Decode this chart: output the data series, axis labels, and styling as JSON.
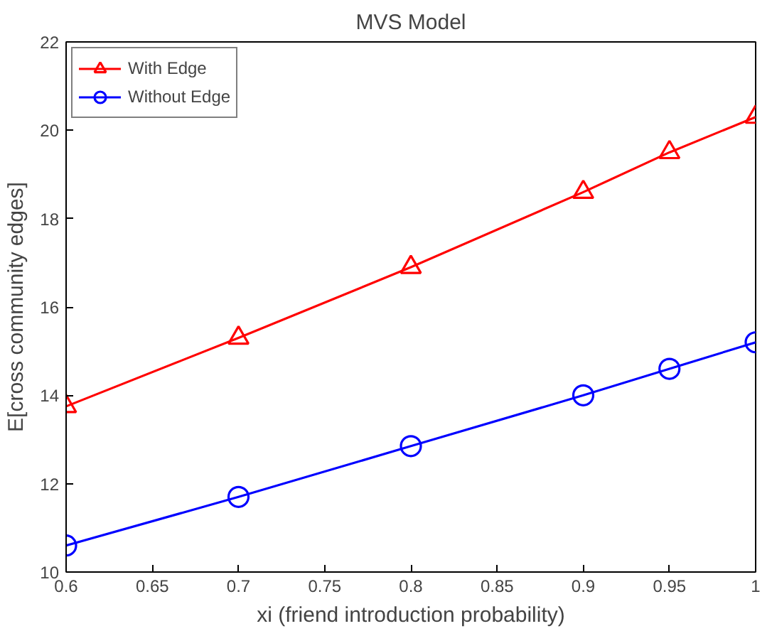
{
  "chart_data": {
    "type": "line",
    "title": "MVS Model",
    "xlabel": "xi (friend introduction probability)",
    "ylabel": "E[cross community edges]",
    "x": [
      0.6,
      0.7,
      0.8,
      0.9,
      0.95,
      1
    ],
    "series": [
      {
        "name": "With Edge",
        "color": "#ff0000",
        "marker": "triangle",
        "values": [
          13.75,
          15.3,
          16.9,
          18.6,
          19.5,
          20.3
        ]
      },
      {
        "name": "Without Edge",
        "color": "#0000ff",
        "marker": "circle",
        "values": [
          10.6,
          11.7,
          12.85,
          14.0,
          14.6,
          15.2
        ]
      }
    ],
    "xlim": [
      0.6,
      1
    ],
    "xticks": [
      0.6,
      0.65,
      0.7,
      0.75,
      0.8,
      0.85,
      0.9,
      0.95,
      1
    ],
    "ylim": [
      10,
      22
    ],
    "yticks": [
      10,
      12,
      14,
      16,
      18,
      20,
      22
    ],
    "grid": false,
    "legend": "top left",
    "line_style": "solid"
  }
}
